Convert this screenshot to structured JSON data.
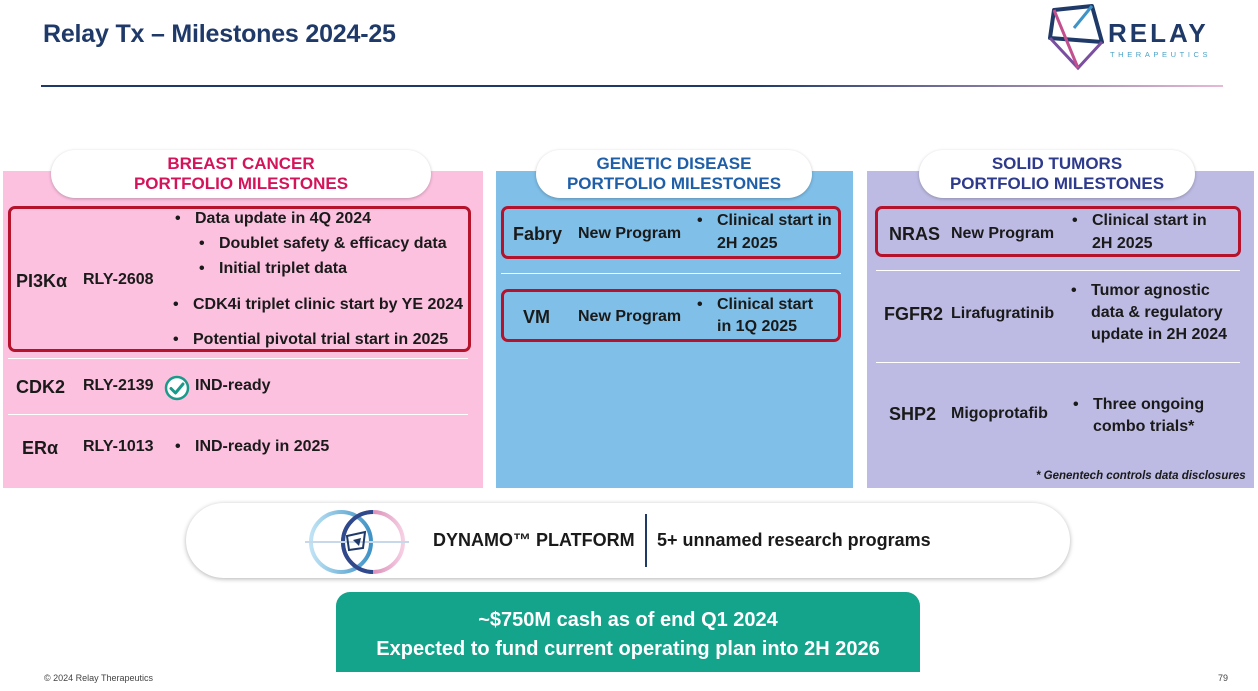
{
  "title": "Relay Tx – Milestones 2024-25",
  "logo": {
    "name": "RELAY",
    "sub": "THERAPEUTICS"
  },
  "breast": {
    "header_line1": "BREAST CANCER",
    "header_line2": "PORTFOLIO MILESTONES",
    "rows": [
      {
        "gene": "PI3Kα",
        "drug": "RLY-2608",
        "bullets": [
          "Data update in 4Q 2024",
          "Doublet safety & efficacy data",
          "Initial triplet data",
          "CDK4i triplet clinic start by YE 2024",
          "Potential pivotal trial start in 2025"
        ]
      },
      {
        "gene": "CDK2",
        "drug": "RLY-2139",
        "status": "IND-ready"
      },
      {
        "gene": "ERα",
        "drug": "RLY-1013",
        "bullets": [
          "IND-ready in 2025"
        ]
      }
    ]
  },
  "genetic": {
    "header_line1": "GENETIC DISEASE",
    "header_line2": "PORTFOLIO MILESTONES",
    "rows": [
      {
        "gene": "Fabry",
        "drug": "New Program",
        "bullet_line1": "Clinical start in",
        "bullet_line2": "2H 2025"
      },
      {
        "gene": "VM",
        "drug": "New Program",
        "bullet_line1": "Clinical start",
        "bullet_line2": "in 1Q 2025"
      }
    ]
  },
  "solid": {
    "header_line1": "SOLID TUMORS",
    "header_line2": "PORTFOLIO MILESTONES",
    "rows": [
      {
        "gene": "NRAS",
        "drug": "New Program",
        "lines": [
          "Clinical start in",
          "2H 2025"
        ]
      },
      {
        "gene": "FGFR2",
        "drug": "Lirafugratinib",
        "lines": [
          "Tumor agnostic",
          "data & regulatory",
          "update in 2H 2024"
        ]
      },
      {
        "gene": "SHP2",
        "drug": "Migoprotafib",
        "lines": [
          "Three ongoing",
          "combo trials*"
        ]
      }
    ],
    "footnote": "* Genentech controls data disclosures"
  },
  "platform": {
    "name": "DYNAMO™ PLATFORM",
    "desc": "5+ unnamed research programs"
  },
  "cash": {
    "line1": "~$750M cash as of end Q1 2024",
    "line2": "Expected to fund current operating plan into 2H 2026"
  },
  "footer": {
    "copyright": "© 2024 Relay Therapeutics",
    "page": "79"
  },
  "colors": {
    "navy": "#1f3a68",
    "pink_panel": "#fdc1e0",
    "blue_panel": "#7fbfe8",
    "lavender_panel": "#bdbbe3",
    "highlight_red": "#b5122b",
    "cash_green": "#14a38b",
    "check_teal": "#1a9a8a"
  }
}
